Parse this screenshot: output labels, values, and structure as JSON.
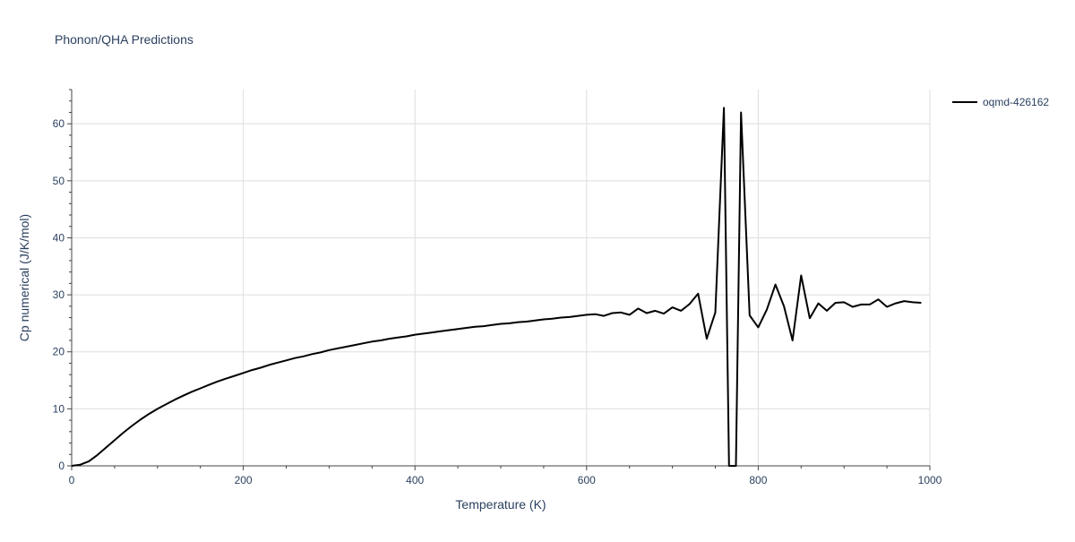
{
  "chart_data": {
    "type": "line",
    "title": "Phonon/QHA Predictions",
    "xlabel": "Temperature (K)",
    "ylabel": "Cp numerical (J/K/mol)",
    "xlim": [
      0,
      1000
    ],
    "ylim": [
      0,
      66
    ],
    "xticks": [
      0,
      200,
      400,
      600,
      800,
      1000
    ],
    "yticks": [
      0,
      10,
      20,
      30,
      40,
      50,
      60
    ],
    "grid": true,
    "legend_position": "top-right",
    "series": [
      {
        "name": "oqmd-426162",
        "color": "#000000",
        "x": [
          0,
          10,
          20,
          30,
          40,
          50,
          60,
          70,
          80,
          90,
          100,
          110,
          120,
          130,
          140,
          150,
          160,
          170,
          180,
          190,
          200,
          210,
          220,
          230,
          240,
          250,
          260,
          270,
          280,
          290,
          300,
          310,
          320,
          330,
          340,
          350,
          360,
          370,
          380,
          390,
          400,
          410,
          420,
          430,
          440,
          450,
          460,
          470,
          480,
          490,
          500,
          510,
          520,
          530,
          540,
          550,
          560,
          570,
          580,
          590,
          600,
          610,
          620,
          630,
          640,
          650,
          660,
          670,
          680,
          690,
          700,
          710,
          720,
          730,
          740,
          750,
          760,
          766,
          770,
          774,
          780,
          790,
          800,
          810,
          820,
          830,
          840,
          850,
          860,
          870,
          880,
          890,
          900,
          910,
          920,
          930,
          940,
          950,
          960,
          970,
          980,
          990
        ],
        "y": [
          0,
          0.2,
          0.8,
          1.9,
          3.2,
          4.5,
          5.8,
          7.0,
          8.1,
          9.1,
          10.0,
          10.8,
          11.6,
          12.3,
          13.0,
          13.6,
          14.2,
          14.8,
          15.3,
          15.8,
          16.3,
          16.8,
          17.2,
          17.7,
          18.1,
          18.5,
          18.9,
          19.2,
          19.6,
          19.9,
          20.3,
          20.6,
          20.9,
          21.2,
          21.5,
          21.8,
          22.0,
          22.3,
          22.5,
          22.7,
          23.0,
          23.2,
          23.4,
          23.6,
          23.8,
          24.0,
          24.2,
          24.4,
          24.5,
          24.7,
          24.9,
          25.0,
          25.2,
          25.3,
          25.5,
          25.7,
          25.8,
          26.0,
          26.1,
          26.3,
          26.5,
          26.6,
          26.3,
          26.8,
          26.9,
          26.5,
          27.6,
          26.8,
          27.2,
          26.7,
          27.8,
          27.2,
          28.4,
          30.2,
          22.3,
          26.9,
          62.8,
          0,
          0,
          0,
          62.0,
          26.4,
          24.3,
          27.4,
          31.8,
          28.0,
          22.0,
          33.4,
          25.9,
          28.5,
          27.2,
          28.6,
          28.7,
          27.9,
          28.3,
          28.3,
          29.2,
          27.9,
          28.5,
          28.9,
          28.7,
          28.6
        ]
      }
    ]
  }
}
